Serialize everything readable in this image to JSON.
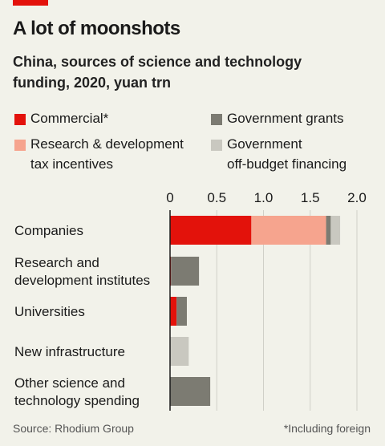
{
  "header": {
    "title": "A lot of moonshots",
    "subtitle": "China, sources of science and technology funding, 2020, yuan trn"
  },
  "footer": {
    "source": "Source: Rhodium Group",
    "footnote": "*Including foreign"
  },
  "chart_data": {
    "type": "bar",
    "orientation": "horizontal",
    "stacked": true,
    "categories": [
      "Companies",
      "Research and development institutes",
      "Universities",
      "New infrastructure",
      "Other science and technology spending"
    ],
    "category_label_lines": [
      [
        "Companies"
      ],
      [
        "Research and",
        "development institutes"
      ],
      [
        "Universities"
      ],
      [
        "New infrastructure"
      ],
      [
        "Other science and",
        "technology spending"
      ]
    ],
    "series": [
      {
        "name": "Commercial*",
        "color": "#e3120b",
        "values": [
          0.87,
          0.01,
          0.07,
          0.0,
          0.0
        ]
      },
      {
        "name": "Research & development tax incentives",
        "color": "#f6a48e",
        "values": [
          0.8,
          0.0,
          0.0,
          0.0,
          0.0
        ]
      },
      {
        "name": "Government grants",
        "color": "#7c7b72",
        "values": [
          0.05,
          0.3,
          0.11,
          0.0,
          0.43
        ]
      },
      {
        "name": "Government off-budget financing",
        "color": "#c9c8c0",
        "values": [
          0.1,
          0.0,
          0.0,
          0.2,
          0.0
        ]
      }
    ],
    "legend": [
      {
        "label_lines": [
          "Commercial*"
        ],
        "color": "#e3120b"
      },
      {
        "label_lines": [
          "Government grants"
        ],
        "color": "#7c7b72"
      },
      {
        "label_lines": [
          "Research & development",
          "tax incentives"
        ],
        "color": "#f6a48e"
      },
      {
        "label_lines": [
          "Government",
          "off-budget financing"
        ],
        "color": "#c9c8c0"
      }
    ],
    "xticks": [
      0,
      0.5,
      1.0,
      1.5,
      2.0
    ],
    "xtick_labels": [
      "0",
      "0.5",
      "1.0",
      "1.5",
      "2.0"
    ],
    "xlim": [
      0,
      2.0
    ],
    "grid": "vertical",
    "legend_position": "top"
  }
}
